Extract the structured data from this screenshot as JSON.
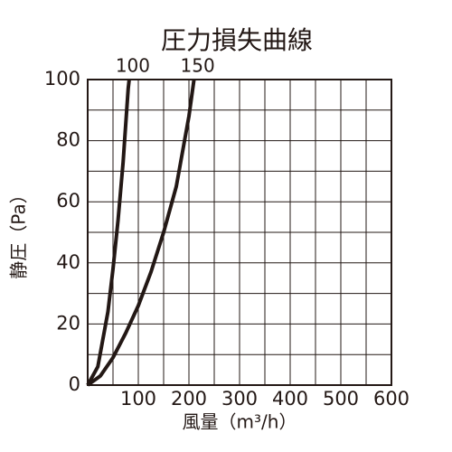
{
  "chart_data": {
    "type": "line",
    "title": "圧力損失曲線",
    "x_label": "風量（m³/h）",
    "y_label": "静圧（Pa）",
    "xlim": [
      0,
      600
    ],
    "ylim": [
      0,
      100
    ],
    "xticks": [
      100,
      200,
      300,
      400,
      500,
      600
    ],
    "yticks": [
      0,
      20,
      40,
      60,
      80,
      100
    ],
    "grid": true,
    "minor_grid": true,
    "series": [
      {
        "name": "100",
        "color": "#231815",
        "x": [
          0,
          20,
          40,
          50,
          60,
          70,
          80,
          82
        ],
        "values": [
          0,
          6,
          24,
          38,
          54,
          73,
          97,
          100
        ]
      },
      {
        "name": "150",
        "color": "#231815",
        "x": [
          0,
          25,
          50,
          75,
          100,
          125,
          150,
          175,
          200,
          210
        ],
        "values": [
          0,
          3,
          9,
          17,
          26,
          37,
          50,
          65,
          88,
          100
        ]
      }
    ]
  }
}
